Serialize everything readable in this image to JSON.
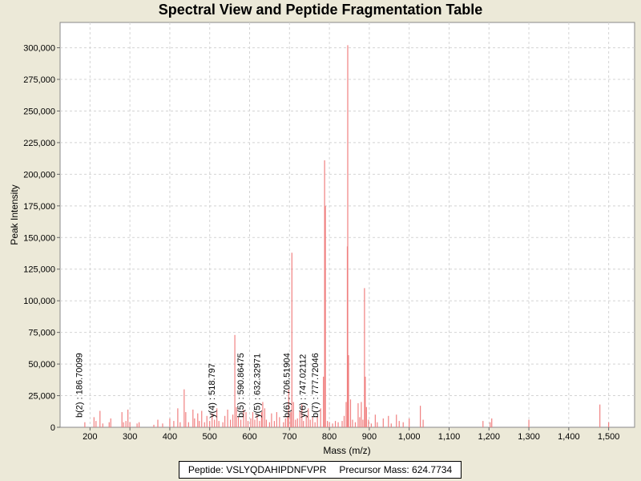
{
  "chart_data": {
    "type": "bar",
    "title": "Spectral View and Peptide Fragmentation Table",
    "xlabel": "Mass (m/z)",
    "ylabel": "Peak Intensity",
    "xlim": [
      125,
      1565
    ],
    "ylim": [
      0,
      320000
    ],
    "xticks": [
      200,
      300,
      400,
      500,
      600,
      700,
      800,
      900,
      1000,
      1100,
      1200,
      1300,
      1400,
      1500
    ],
    "xtick_labels": [
      "200",
      "300",
      "400",
      "500",
      "600",
      "700",
      "800",
      "900",
      "1,000",
      "1,100",
      "1,200",
      "1,300",
      "1,400",
      "1,500"
    ],
    "yticks": [
      0,
      25000,
      50000,
      75000,
      100000,
      125000,
      150000,
      175000,
      200000,
      225000,
      250000,
      275000,
      300000
    ],
    "ytick_labels": [
      "0",
      "25,000",
      "50,000",
      "75,000",
      "100,000",
      "125,000",
      "150,000",
      "175,000",
      "200,000",
      "225,000",
      "250,000",
      "275,000",
      "300,000"
    ],
    "grid": true,
    "bar_color": "#F08080",
    "peaks": [
      [
        187,
        4000
      ],
      [
        210,
        8000
      ],
      [
        215,
        5000
      ],
      [
        225,
        13000
      ],
      [
        232,
        3000
      ],
      [
        248,
        4000
      ],
      [
        252,
        7000
      ],
      [
        280,
        12000
      ],
      [
        284,
        4000
      ],
      [
        290,
        5000
      ],
      [
        295,
        14000
      ],
      [
        300,
        4000
      ],
      [
        318,
        3000
      ],
      [
        323,
        4000
      ],
      [
        360,
        2000
      ],
      [
        370,
        6000
      ],
      [
        382,
        3000
      ],
      [
        400,
        7000
      ],
      [
        410,
        5000
      ],
      [
        420,
        15000
      ],
      [
        426,
        4000
      ],
      [
        436,
        30000
      ],
      [
        440,
        12000
      ],
      [
        447,
        4000
      ],
      [
        458,
        14000
      ],
      [
        462,
        7000
      ],
      [
        470,
        11000
      ],
      [
        474,
        5000
      ],
      [
        480,
        13000
      ],
      [
        487,
        4000
      ],
      [
        493,
        9000
      ],
      [
        500,
        5000
      ],
      [
        506,
        11000
      ],
      [
        512,
        6000
      ],
      [
        518,
        15000
      ],
      [
        523,
        5000
      ],
      [
        533,
        4000
      ],
      [
        538,
        9000
      ],
      [
        545,
        14000
      ],
      [
        552,
        6000
      ],
      [
        558,
        10000
      ],
      [
        563,
        73000
      ],
      [
        567,
        16000
      ],
      [
        572,
        8000
      ],
      [
        578,
        6000
      ],
      [
        585,
        14000
      ],
      [
        591,
        12000
      ],
      [
        596,
        5000
      ],
      [
        603,
        7000
      ],
      [
        608,
        12000
      ],
      [
        613,
        6000
      ],
      [
        619,
        10000
      ],
      [
        625,
        5000
      ],
      [
        630,
        12000
      ],
      [
        633,
        20000
      ],
      [
        638,
        15000
      ],
      [
        642,
        6000
      ],
      [
        650,
        4000
      ],
      [
        655,
        11000
      ],
      [
        662,
        5000
      ],
      [
        668,
        12000
      ],
      [
        675,
        8000
      ],
      [
        685,
        4000
      ],
      [
        690,
        7000
      ],
      [
        695,
        9000
      ],
      [
        698,
        30000
      ],
      [
        703,
        12000
      ],
      [
        706,
        138000
      ],
      [
        710,
        20000
      ],
      [
        715,
        6000
      ],
      [
        720,
        7000
      ],
      [
        726,
        13000
      ],
      [
        731,
        18000
      ],
      [
        735,
        5000
      ],
      [
        742,
        9000
      ],
      [
        747,
        15000
      ],
      [
        752,
        6000
      ],
      [
        758,
        8000
      ],
      [
        764,
        4000
      ],
      [
        770,
        9000
      ],
      [
        778,
        15000
      ],
      [
        785,
        40000
      ],
      [
        788,
        211000
      ],
      [
        790,
        175000
      ],
      [
        795,
        5000
      ],
      [
        800,
        4000
      ],
      [
        808,
        3000
      ],
      [
        815,
        5000
      ],
      [
        822,
        4000
      ],
      [
        832,
        5000
      ],
      [
        837,
        9000
      ],
      [
        842,
        20000
      ],
      [
        845,
        143000
      ],
      [
        846,
        302000
      ],
      [
        848,
        57000
      ],
      [
        853,
        22000
      ],
      [
        858,
        6000
      ],
      [
        865,
        4000
      ],
      [
        872,
        19000
      ],
      [
        876,
        8000
      ],
      [
        880,
        20000
      ],
      [
        884,
        6000
      ],
      [
        888,
        110000
      ],
      [
        890,
        40000
      ],
      [
        893,
        16000
      ],
      [
        898,
        6000
      ],
      [
        905,
        3000
      ],
      [
        915,
        10000
      ],
      [
        920,
        4000
      ],
      [
        935,
        7000
      ],
      [
        948,
        9000
      ],
      [
        955,
        3000
      ],
      [
        968,
        10000
      ],
      [
        975,
        5000
      ],
      [
        985,
        4000
      ],
      [
        1000,
        7000
      ],
      [
        1028,
        17000
      ],
      [
        1035,
        6000
      ],
      [
        1185,
        5000
      ],
      [
        1203,
        4000
      ],
      [
        1207,
        7000
      ],
      [
        1300,
        6000
      ],
      [
        1478,
        18000
      ],
      [
        1500,
        4000
      ]
    ],
    "annotations": [
      {
        "x": 186.70099,
        "label": "b(2) : 186.70099"
      },
      {
        "x": 518.797,
        "label": "y(4) : 518.797"
      },
      {
        "x": 590.86475,
        "label": "b(5) : 590.86475"
      },
      {
        "x": 632.32971,
        "label": "y(5) : 632.32971"
      },
      {
        "x": 706.51904,
        "label": "b(6) : 706.51904"
      },
      {
        "x": 747.02112,
        "label": "y(6) : 747.02112"
      },
      {
        "x": 777.72046,
        "label": "b(7) : 777.72046"
      }
    ]
  },
  "footer": {
    "peptide": "Peptide: VSLYQDAHIPDNFVPR",
    "precursor": "Precursor Mass: 624.7734"
  }
}
